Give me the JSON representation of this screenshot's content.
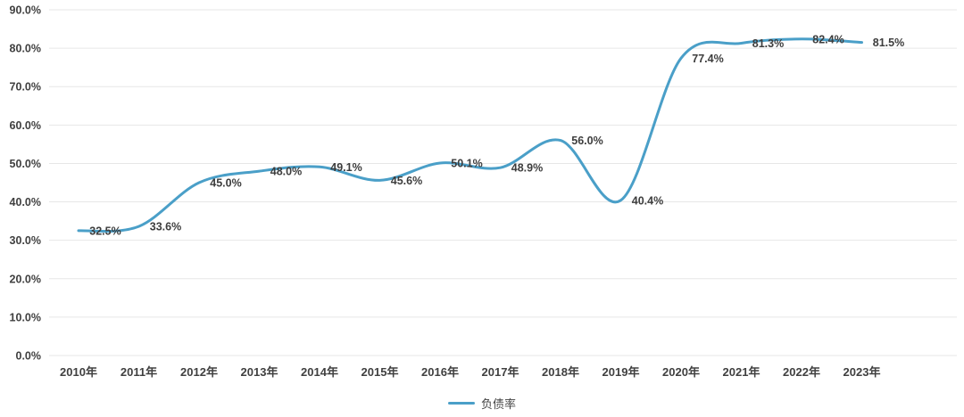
{
  "chart_data": {
    "type": "line",
    "title": "",
    "legend": "负债率",
    "legend_position": "bottom-center",
    "categories": [
      "2010年",
      "2011年",
      "2012年",
      "2013年",
      "2014年",
      "2015年",
      "2016年",
      "2017年",
      "2018年",
      "2019年",
      "2020年",
      "2021年",
      "2022年",
      "2023年"
    ],
    "values": [
      32.5,
      33.6,
      45.0,
      48.0,
      49.1,
      45.6,
      50.1,
      48.9,
      56.0,
      40.4,
      77.4,
      81.3,
      82.4,
      81.5
    ],
    "point_labels": [
      "32.5%",
      "33.6%",
      "45.0%",
      "48.0%",
      "49.1%",
      "45.6%",
      "50.1%",
      "48.9%",
      "56.0%",
      "40.4%",
      "77.4%",
      "81.3%",
      "82.4%",
      "81.5%"
    ],
    "y_ticks": [
      "0.0%",
      "10.0%",
      "20.0%",
      "30.0%",
      "40.0%",
      "50.0%",
      "60.0%",
      "70.0%",
      "80.0%",
      "90.0%"
    ],
    "ylim": [
      0,
      90
    ],
    "y_tick_step": 10,
    "grid": "horizontal",
    "smooth": true,
    "markers": false,
    "colors": {
      "line": "#4a9fc8",
      "tick_text": "#404040",
      "label_text": "#3d3d3d",
      "gridline": "#e7e7e7",
      "background": "#ffffff"
    }
  }
}
